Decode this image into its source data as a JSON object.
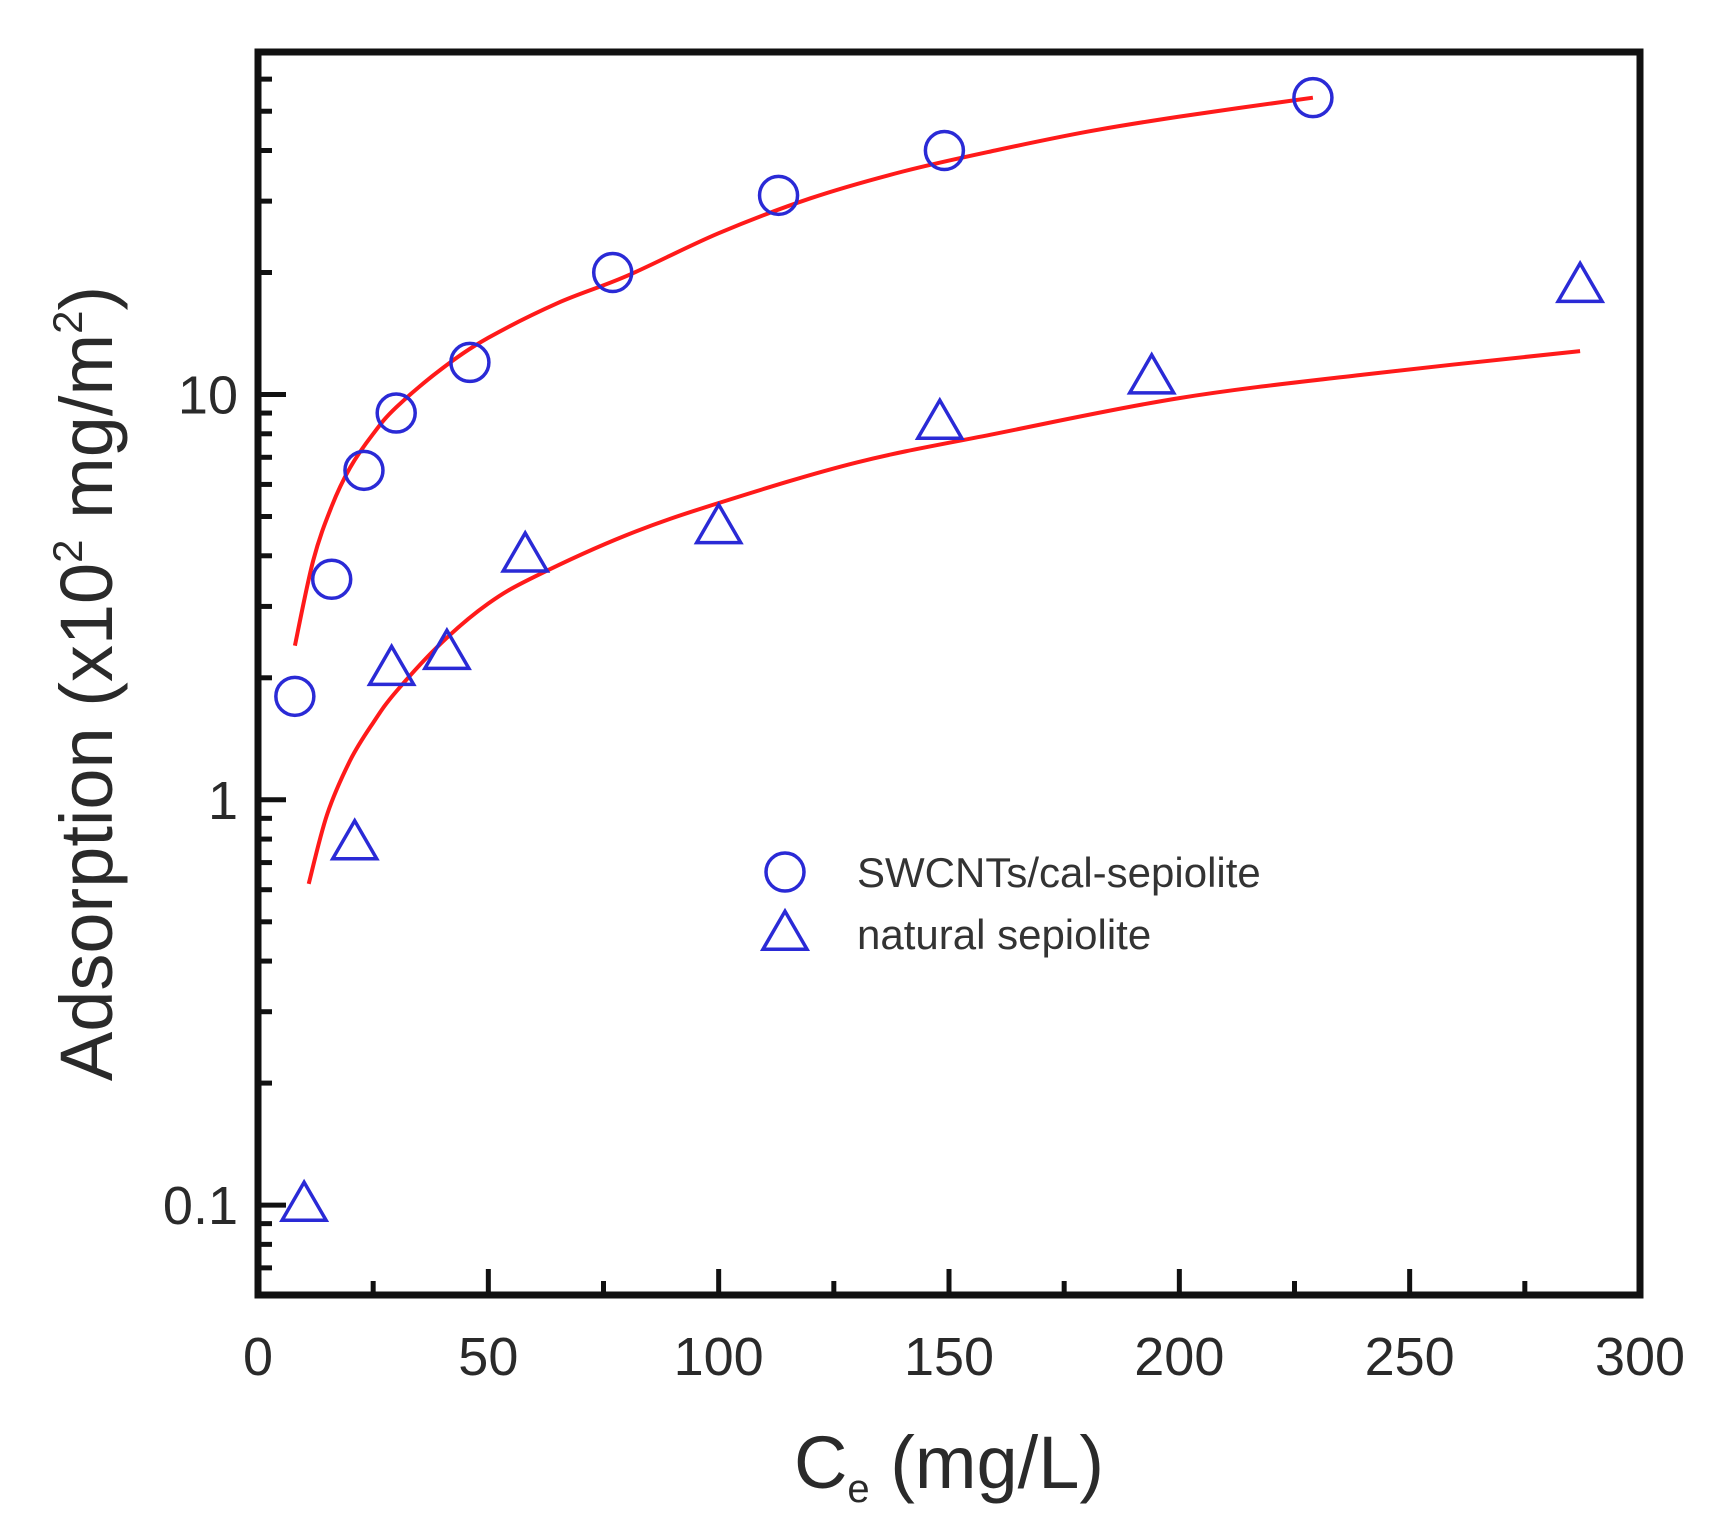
{
  "chart_data": {
    "type": "scatter",
    "xlabel": {
      "main": "C",
      "sub": "e",
      "units": "(mg/L)"
    },
    "ylabel": {
      "pre": "Adsorption (x10",
      "sup1": "2",
      "mid": " mg/m",
      "sup2": "2",
      "post": ")"
    },
    "xlim": [
      0,
      300
    ],
    "ylim": [
      0.06,
      70
    ],
    "yscale": "log",
    "x_ticks": [
      0,
      50,
      100,
      150,
      200,
      250,
      300
    ],
    "x_tick_labels": [
      "0",
      "50",
      "100",
      "150",
      "200",
      "250",
      "300"
    ],
    "y_ticks": [
      0.1,
      1,
      10
    ],
    "y_tick_labels": [
      "0.1",
      "1",
      "10"
    ],
    "grid": false,
    "legend_position": "center-right",
    "series": [
      {
        "name": "SWCNTs/cal-sepiolite",
        "marker": "circle",
        "color": "#2a2ad6",
        "x": [
          8,
          16,
          23,
          30,
          46,
          77,
          113,
          149,
          229
        ],
        "y": [
          1.8,
          3.5,
          6.5,
          9.0,
          12.0,
          20.0,
          31.0,
          40.0,
          54.0
        ]
      },
      {
        "name": "natural sepiolite",
        "marker": "triangle",
        "color": "#2a2ad6",
        "x": [
          10,
          21,
          29,
          41,
          58,
          100,
          148,
          194,
          287
        ],
        "y": [
          0.1,
          0.78,
          2.1,
          2.3,
          4.0,
          4.7,
          8.5,
          11.0,
          18.5
        ]
      }
    ],
    "fits": [
      {
        "name": "SWCNTs/cal-sepiolite fit",
        "color": "#ff1a1a",
        "x": [
          8,
          12,
          16,
          20,
          25,
          30,
          40,
          50,
          65,
          80,
          100,
          120,
          140,
          160,
          180,
          200,
          229
        ],
        "y": [
          2.4,
          3.9,
          5.3,
          6.6,
          8.0,
          9.3,
          11.6,
          13.8,
          16.8,
          19.6,
          25.0,
          30.5,
          35.5,
          40.0,
          44.5,
          48.5,
          54.0
        ]
      },
      {
        "name": "natural sepiolite fit",
        "color": "#ff1a1a",
        "x": [
          11,
          15,
          20,
          25,
          30,
          40,
          50,
          60,
          80,
          100,
          130,
          160,
          200,
          240,
          287
        ],
        "y": [
          0.62,
          0.92,
          1.25,
          1.55,
          1.85,
          2.45,
          3.05,
          3.55,
          4.5,
          5.4,
          6.8,
          8.0,
          9.8,
          11.2,
          12.8
        ]
      }
    ]
  }
}
